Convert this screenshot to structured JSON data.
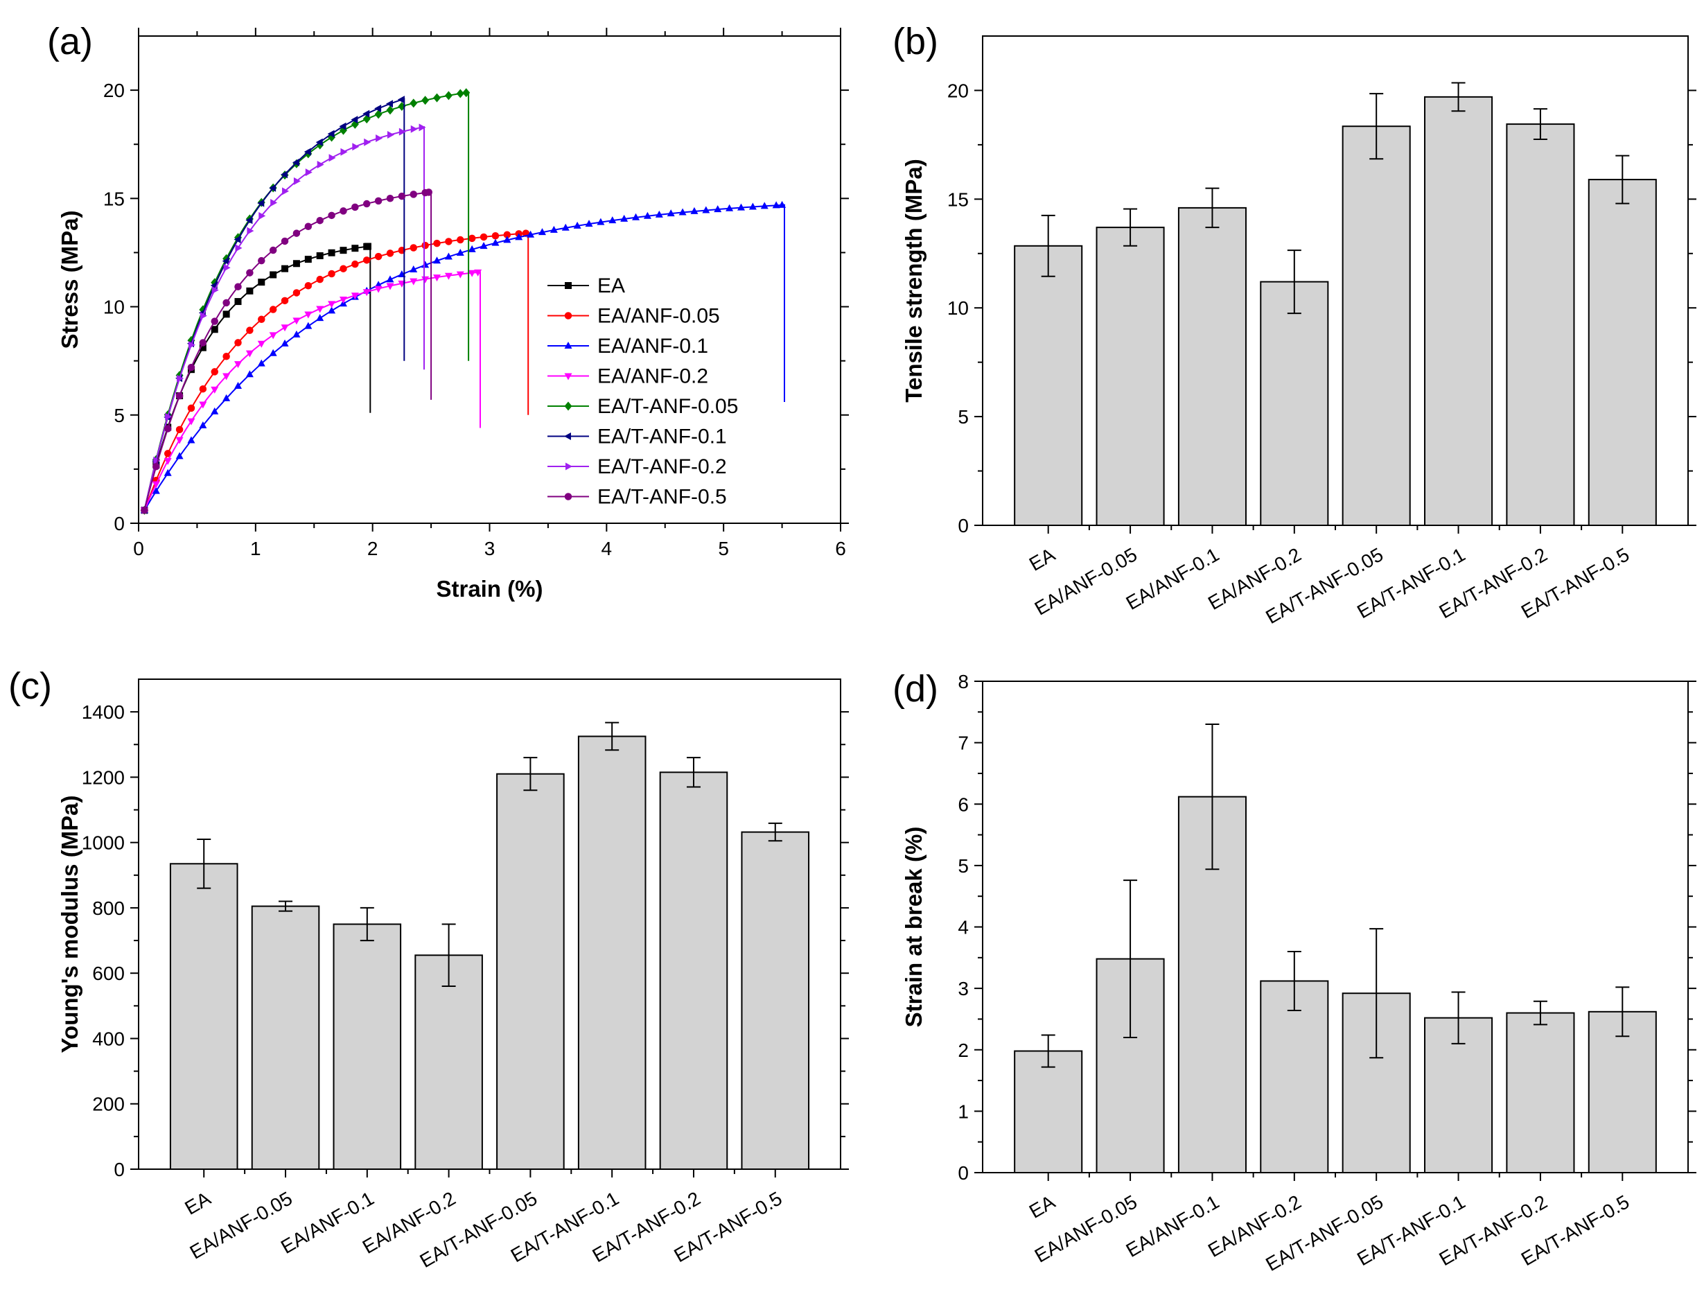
{
  "chart_data": [
    {
      "type": "line",
      "panel": "(a)",
      "xlabel": "Strain (%)",
      "ylabel": "Stress (MPa)",
      "xlim": [
        0,
        6
      ],
      "ylim": [
        0,
        22.5
      ],
      "xticks": [
        0,
        1,
        2,
        3,
        4,
        5,
        6
      ],
      "yticks": [
        0,
        5,
        10,
        15,
        20
      ],
      "legend_position": "middle-right",
      "series": [
        {
          "name": "EA",
          "color": "#000000",
          "marker": "square",
          "break_strain": 1.98,
          "max_stress": 12.8,
          "end_stress": 5.1,
          "shape": 0.55
        },
        {
          "name": "EA/ANF-0.05",
          "color": "#ff0000",
          "marker": "circle",
          "break_strain": 3.33,
          "max_stress": 13.4,
          "end_stress": 5.0,
          "shape": 0.9
        },
        {
          "name": "EA/ANF-0.1",
          "color": "#0000ff",
          "marker": "triangle-up",
          "break_strain": 5.52,
          "max_stress": 14.7,
          "end_stress": 5.6,
          "shape": 1.6
        },
        {
          "name": "EA/ANF-0.2",
          "color": "#ff00ff",
          "marker": "triangle-down",
          "break_strain": 2.92,
          "max_stress": 11.6,
          "end_stress": 4.4,
          "shape": 0.9
        },
        {
          "name": "EA/T-ANF-0.05",
          "color": "#008000",
          "marker": "diamond",
          "break_strain": 2.82,
          "max_stress": 19.9,
          "end_stress": 7.5,
          "shape": 0.8
        },
        {
          "name": "EA/T-ANF-0.1",
          "color": "#000080",
          "marker": "triangle-left",
          "break_strain": 2.27,
          "max_stress": 19.6,
          "end_stress": 7.5,
          "shape": 0.85
        },
        {
          "name": "EA/T-ANF-0.2",
          "color": "#a020f0",
          "marker": "triangle-right",
          "break_strain": 2.44,
          "max_stress": 18.3,
          "end_stress": 7.1,
          "shape": 0.75
        },
        {
          "name": "EA/T-ANF-0.5",
          "color": "#800080",
          "marker": "circle",
          "break_strain": 2.5,
          "max_stress": 15.3,
          "end_stress": 5.7,
          "shape": 0.7
        }
      ]
    },
    {
      "type": "bar",
      "panel": "(b)",
      "xlabel": "",
      "ylabel": "Tensile strength (MPa)",
      "ylim": [
        0,
        22.5
      ],
      "yticks": [
        0,
        5,
        10,
        15,
        20
      ],
      "categories": [
        "EA",
        "EA/ANF-0.05",
        "EA/ANF-0.1",
        "EA/ANF-0.2",
        "EA/T-ANF-0.05",
        "EA/T-ANF-0.1",
        "EA/T-ANF-0.2",
        "EA/T-ANF-0.5"
      ],
      "values": [
        12.85,
        13.7,
        14.6,
        11.2,
        18.35,
        19.7,
        18.45,
        15.9
      ],
      "errors": [
        1.4,
        0.85,
        0.9,
        1.45,
        1.5,
        0.65,
        0.7,
        1.1
      ]
    },
    {
      "type": "bar",
      "panel": "(c)",
      "xlabel": "",
      "ylabel": "Young's modulus (MPa)",
      "ylim": [
        0,
        1500
      ],
      "yticks": [
        0,
        200,
        400,
        600,
        800,
        1000,
        1200,
        1400
      ],
      "categories": [
        "EA",
        "EA/ANF-0.05",
        "EA/ANF-0.1",
        "EA/ANF-0.2",
        "EA/T-ANF-0.05",
        "EA/T-ANF-0.1",
        "EA/T-ANF-0.2",
        "EA/T-ANF-0.5"
      ],
      "values": [
        935,
        805,
        750,
        655,
        1210,
        1325,
        1215,
        1032
      ],
      "errors": [
        75,
        15,
        50,
        95,
        50,
        42,
        45,
        27
      ]
    },
    {
      "type": "bar",
      "panel": "(d)",
      "xlabel": "",
      "ylabel": "Strain at break (%)",
      "ylim": [
        0,
        8
      ],
      "yticks": [
        0,
        1,
        2,
        3,
        4,
        5,
        6,
        7,
        8
      ],
      "categories": [
        "EA",
        "EA/ANF-0.05",
        "EA/ANF-0.1",
        "EA/ANF-0.2",
        "EA/T-ANF-0.05",
        "EA/T-ANF-0.1",
        "EA/T-ANF-0.2",
        "EA/T-ANF-0.5"
      ],
      "values": [
        1.98,
        3.48,
        6.12,
        3.12,
        2.92,
        2.52,
        2.6,
        2.62
      ],
      "errors": [
        0.26,
        1.28,
        1.18,
        0.48,
        1.05,
        0.42,
        0.19,
        0.4
      ]
    }
  ],
  "colors": {
    "bar_fill": "#d3d3d3",
    "bar_edge": "#000000",
    "axis": "#000000"
  }
}
